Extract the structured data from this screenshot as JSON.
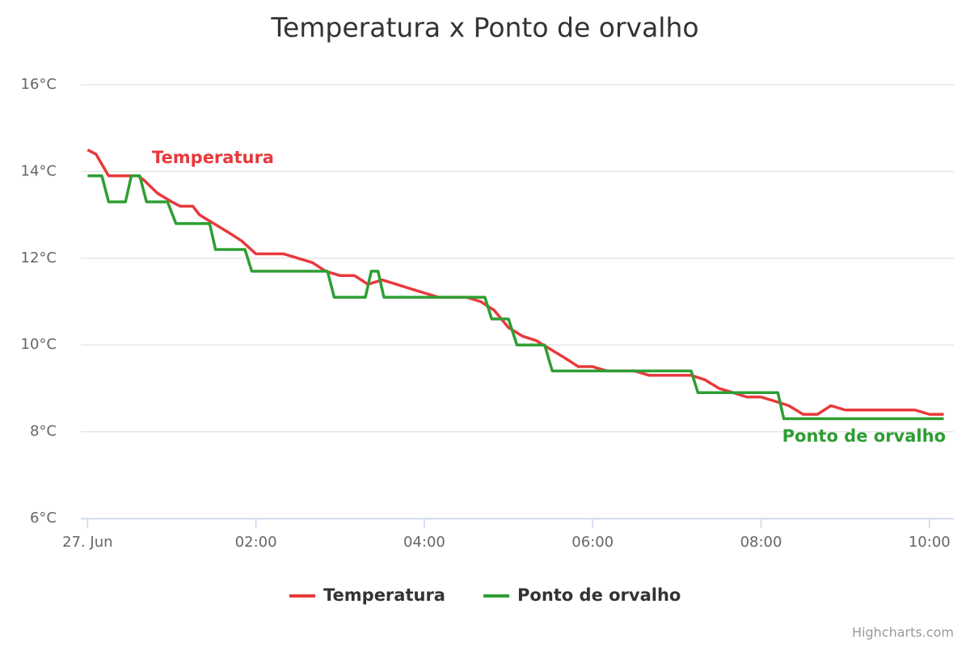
{
  "chart_data": {
    "type": "line",
    "title": "Temperatura x Ponto de orvalho",
    "credits": "Highcharts.com",
    "xlim": [
      -0.08,
      10.29
    ],
    "xticks": [
      {
        "value": 0,
        "label": "27. Jun"
      },
      {
        "value": 2,
        "label": "02:00"
      },
      {
        "value": 4,
        "label": "04:00"
      },
      {
        "value": 6,
        "label": "06:00"
      },
      {
        "value": 8,
        "label": "08:00"
      },
      {
        "value": 10,
        "label": "10:00"
      }
    ],
    "ylim": [
      6,
      16
    ],
    "yticks": [
      {
        "value": 6,
        "label": "6°C"
      },
      {
        "value": 8,
        "label": "8°C"
      },
      {
        "value": 10,
        "label": "10°C"
      },
      {
        "value": 12,
        "label": "12°C"
      },
      {
        "value": 14,
        "label": "14°C"
      },
      {
        "value": 16,
        "label": "16°C"
      }
    ],
    "grid": true,
    "legend": "bottom",
    "series": [
      {
        "name": "Temperatura",
        "color": "#e8393c",
        "x": [
          0,
          0.1,
          0.25,
          0.5,
          0.6,
          0.67,
          0.83,
          1,
          1.1,
          1.25,
          1.33,
          1.5,
          1.67,
          1.83,
          2,
          2.17,
          2.33,
          2.5,
          2.67,
          2.83,
          3,
          3.17,
          3.33,
          3.5,
          3.67,
          3.83,
          4,
          4.17,
          4.33,
          4.5,
          4.67,
          4.83,
          5,
          5.17,
          5.33,
          5.5,
          5.67,
          5.83,
          6,
          6.17,
          6.33,
          6.5,
          6.67,
          6.83,
          7,
          7.17,
          7.33,
          7.5,
          7.67,
          7.83,
          8,
          8.17,
          8.33,
          8.5,
          8.67,
          8.83,
          9,
          9.17,
          9.33,
          9.5,
          9.67,
          9.83,
          10,
          10.17
        ],
        "values": [
          14.5,
          14.4,
          13.9,
          13.9,
          13.9,
          13.8,
          13.5,
          13.3,
          13.2,
          13.2,
          13.0,
          12.8,
          12.6,
          12.4,
          12.1,
          12.1,
          12.1,
          12.0,
          11.9,
          11.7,
          11.6,
          11.6,
          11.4,
          11.5,
          11.4,
          11.3,
          11.2,
          11.1,
          11.1,
          11.1,
          11.0,
          10.8,
          10.4,
          10.2,
          10.1,
          9.9,
          9.7,
          9.5,
          9.5,
          9.4,
          9.4,
          9.4,
          9.3,
          9.3,
          9.3,
          9.3,
          9.2,
          9.0,
          8.9,
          8.8,
          8.8,
          8.7,
          8.6,
          8.4,
          8.4,
          8.6,
          8.5,
          8.5,
          8.5,
          8.5,
          8.5,
          8.5,
          8.4,
          8.4
        ]
      },
      {
        "name": "Ponto de orvalho",
        "color": "#2e9e33",
        "x": [
          0,
          0.17,
          0.25,
          0.45,
          0.52,
          0.62,
          0.7,
          0.95,
          1.05,
          1.45,
          1.52,
          1.87,
          1.95,
          2.85,
          2.93,
          3.3,
          3.37,
          3.45,
          3.52,
          4.72,
          4.8,
          5.0,
          5.1,
          5.43,
          5.52,
          7.17,
          7.25,
          8.2,
          8.27,
          10.17
        ],
        "values": [
          13.9,
          13.9,
          13.3,
          13.3,
          13.9,
          13.9,
          13.3,
          13.3,
          12.8,
          12.8,
          12.2,
          12.2,
          11.7,
          11.7,
          11.1,
          11.1,
          11.7,
          11.7,
          11.1,
          11.1,
          10.6,
          10.6,
          10.0,
          10.0,
          9.4,
          9.4,
          8.9,
          8.9,
          8.3,
          8.3
        ]
      }
    ]
  }
}
